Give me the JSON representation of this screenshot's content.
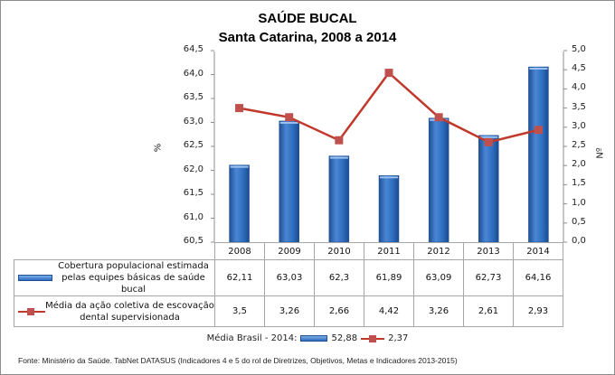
{
  "title": "SAÚDE BUCAL",
  "subtitle": "Santa Catarina, 2008 a 2014",
  "axes": {
    "left_label": "%",
    "right_label": "Nº",
    "left_ticks": [
      "64,5",
      "64,0",
      "63,5",
      "63,0",
      "62,5",
      "62,0",
      "61,5",
      "61,0",
      "60,5"
    ],
    "right_ticks": [
      "5,0",
      "4,5",
      "4,0",
      "3,5",
      "3,0",
      "2,5",
      "2,0",
      "1,5",
      "1,0",
      "0,5",
      "0,0"
    ]
  },
  "table": {
    "years": [
      "2008",
      "2009",
      "2010",
      "2011",
      "2012",
      "2013",
      "2014"
    ],
    "series1_label_line1": "Cobertura populacional estimada",
    "series1_label_line2": "pelas equipes básicas de saúde bucal",
    "series1_values": [
      "62,11",
      "63,03",
      "62,3",
      "61,89",
      "63,09",
      "62,73",
      "64,16"
    ],
    "series2_label_line1": "Média da ação coletiva de escovação",
    "series2_label_line2": "dental supervisionada",
    "series2_values": [
      "3,5",
      "3,26",
      "2,66",
      "4,42",
      "3,26",
      "2,61",
      "2,93"
    ]
  },
  "brazil_avg": {
    "label": "Média Brasil - 2014:",
    "bar_value": "52,88",
    "line_value": "2,37"
  },
  "source": "Fonte: Ministério da Saúde. TabNet DATASUS (Indicadores 4 e 5 do rol de Diretrizes, Objetivos, Metas e Indicadores 2013-2015)",
  "colors": {
    "bar": "#2e6dbf",
    "line": "#c0392b",
    "marker": "#c0504d"
  },
  "chart_data": {
    "type": "bar+line",
    "title": "SAÚDE BUCAL",
    "subtitle": "Santa Catarina, 2008 a 2014",
    "categories": [
      "2008",
      "2009",
      "2010",
      "2011",
      "2012",
      "2013",
      "2014"
    ],
    "series": [
      {
        "name": "Cobertura populacional estimada pelas equipes básicas de saúde bucal",
        "type": "bar",
        "axis": "left",
        "values": [
          62.11,
          63.03,
          62.3,
          61.89,
          63.09,
          62.73,
          64.16
        ]
      },
      {
        "name": "Média da ação coletiva de escovação dental supervisionada",
        "type": "line",
        "axis": "right",
        "values": [
          3.5,
          3.26,
          2.66,
          4.42,
          3.26,
          2.61,
          2.93
        ]
      }
    ],
    "ylabel_left": "%",
    "ylim_left": [
      60.5,
      64.5
    ],
    "ylabel_right": "Nº",
    "ylim_right": [
      0,
      5
    ],
    "legend": "data table below chart",
    "annotations": [
      "Média Brasil - 2014: 52,88 (bar), 2,37 (line)"
    ]
  }
}
